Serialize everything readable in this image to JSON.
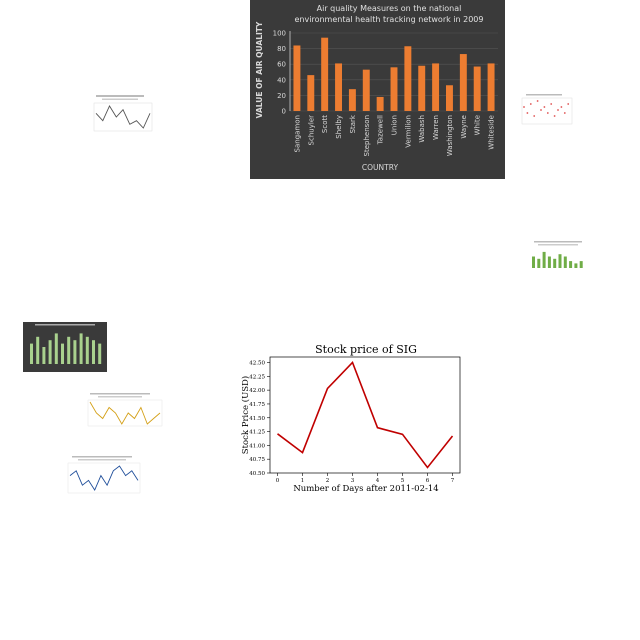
{
  "chart_data": [
    {
      "type": "bar",
      "title": "Air quality Measures on the national environmental health tracking network in 2009",
      "title_lines": [
        "Air quality Measures on the national",
        "environmental health tracking network in 2009"
      ],
      "xlabel": "COUNTRY",
      "ylabel": "VALUE OF AIR QUALITY",
      "categories": [
        "Sangamon",
        "Schuyler",
        "Scott",
        "Shelby",
        "Stark",
        "Stephenson",
        "Tazewell",
        "Union",
        "Vermilion",
        "Wabash",
        "Warren",
        "Washington",
        "Wayne",
        "White",
        "Whiteside"
      ],
      "values": [
        84,
        46,
        94,
        61,
        28,
        53,
        18,
        56,
        83,
        58,
        61,
        33,
        73,
        57,
        61
      ],
      "ylim": [
        0,
        100
      ],
      "yticks": [
        0,
        20,
        40,
        60,
        80,
        100
      ],
      "colors": {
        "background": "#3a3a3a",
        "bar": "#ed7d31",
        "text": "#d9d9d9"
      }
    },
    {
      "type": "line",
      "title": "Stock price of SIG",
      "xlabel": "Number of Days after 2011-02-14",
      "ylabel": "Stock Price (USD)",
      "x": [
        0,
        1,
        2,
        3,
        4,
        5,
        6,
        7
      ],
      "values": [
        41.21,
        40.87,
        42.03,
        42.5,
        41.32,
        41.2,
        40.6,
        41.17
      ],
      "xlim": [
        -0.3,
        7.3
      ],
      "ylim": [
        40.5,
        42.6
      ],
      "yticks": [
        "40.50",
        "40.75",
        "41.00",
        "41.25",
        "41.50",
        "41.75",
        "42.00",
        "42.25",
        "42.50"
      ],
      "colors": {
        "line": "#c00000"
      }
    }
  ],
  "thumbnails": [
    {
      "kind": "line-gray",
      "colors": {
        "line": "#555555"
      },
      "values": [
        6,
        4,
        8,
        5,
        7,
        3,
        4,
        2,
        6
      ]
    },
    {
      "kind": "scatter-red",
      "colors": {
        "point": "#e05050"
      },
      "values": [
        5,
        3,
        6,
        2,
        7,
        4,
        5,
        3,
        6,
        2,
        4,
        5,
        3,
        6
      ]
    },
    {
      "kind": "bar-green",
      "colors": {
        "bar": "#70ad47"
      },
      "values": [
        5,
        4,
        7,
        5,
        4,
        6,
        5,
        3,
        2,
        3
      ]
    },
    {
      "kind": "bar-dark-green",
      "colors": {
        "background": "#3a3a3a",
        "bar": "#a9d18e"
      },
      "values": [
        6,
        8,
        5,
        7,
        9,
        6,
        8,
        7,
        9,
        8,
        7,
        6
      ]
    },
    {
      "kind": "line-gold",
      "colors": {
        "line": "#d4a017"
      },
      "values": [
        7,
        5,
        4,
        6,
        5,
        3,
        5,
        4,
        6,
        3,
        4,
        5
      ]
    },
    {
      "kind": "line-blue",
      "colors": {
        "line": "#1f4e9a"
      },
      "values": [
        6,
        7,
        4,
        5,
        3,
        6,
        4,
        7,
        8,
        6,
        7,
        5
      ]
    }
  ]
}
